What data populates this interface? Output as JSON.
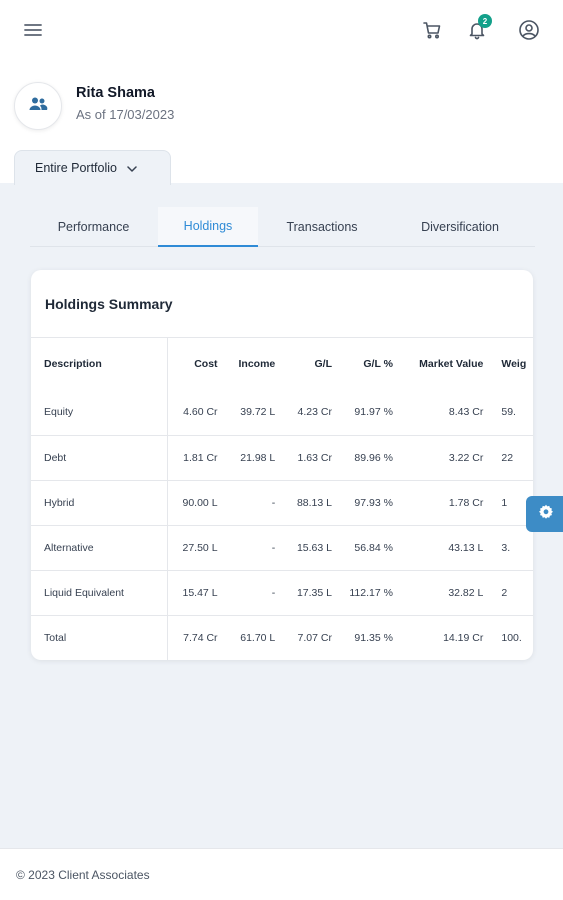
{
  "header": {
    "menu_icon": "hamburger-menu-icon",
    "cart_icon": "cart-icon",
    "bell_icon": "bell-icon",
    "notification_count": "2",
    "profile_icon": "user-circle-icon"
  },
  "profile": {
    "avatar_icon": "users-icon",
    "name": "Rita Shama",
    "as_of": "As of 17/03/2023"
  },
  "portfolio_selector": {
    "label": "Entire Portfolio",
    "icon": "chevron-down-icon"
  },
  "tabs": [
    {
      "label": "Performance",
      "active": false
    },
    {
      "label": "Holdings",
      "active": true
    },
    {
      "label": "Transactions",
      "active": false
    },
    {
      "label": "Diversification",
      "active": false
    }
  ],
  "holdings": {
    "title": "Holdings Summary",
    "columns": [
      "Description",
      "Cost",
      "Income",
      "G/L",
      "G/L %",
      "Market Value",
      "Weig"
    ],
    "rows": [
      [
        "Equity",
        "4.60 Cr",
        "39.72 L",
        "4.23 Cr",
        "91.97 %",
        "8.43 Cr",
        "59."
      ],
      [
        "Debt",
        "1.81 Cr",
        "21.98 L",
        "1.63 Cr",
        "89.96 %",
        "3.22 Cr",
        "22"
      ],
      [
        "Hybrid",
        "90.00 L",
        "-",
        "88.13 L",
        "97.93 %",
        "1.78 Cr",
        "1"
      ],
      [
        "Alternative",
        "27.50 L",
        "-",
        "15.63 L",
        "56.84 %",
        "43.13 L",
        "3."
      ],
      [
        "Liquid Equivalent",
        "15.47 L",
        "-",
        "17.35 L",
        "112.17 %",
        "32.82 L",
        "2"
      ],
      [
        "Total",
        "7.74 Cr",
        "61.70 L",
        "7.07 Cr",
        "91.35 %",
        "14.19 Cr",
        "100."
      ]
    ]
  },
  "settings_fab": {
    "icon": "gear-icon"
  },
  "footer": {
    "text": "© 2023 Client Associates"
  },
  "colors": {
    "accent": "#2f8bd6",
    "badge": "#13a08a",
    "fab": "#3d8cc6",
    "background": "#eef2f7"
  }
}
